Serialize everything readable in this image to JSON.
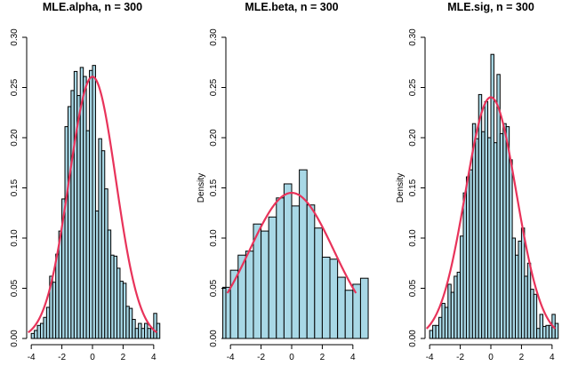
{
  "chart_data": [
    {
      "type": "bar",
      "title": "MLE.alpha, n = 300",
      "xlabel": "",
      "ylabel": "",
      "xlim": [
        -4.3,
        4.3
      ],
      "ylim": [
        0,
        0.3
      ],
      "xticks": [
        -4,
        -2,
        0,
        2,
        4
      ],
      "yticks": [
        0.0,
        0.05,
        0.1,
        0.15,
        0.2,
        0.25,
        0.3
      ],
      "bin_start": -4.0,
      "bin_width": 0.2,
      "values": [
        0.005,
        0.008,
        0.013,
        0.015,
        0.021,
        0.031,
        0.062,
        0.056,
        0.084,
        0.107,
        0.139,
        0.211,
        0.231,
        0.247,
        0.266,
        0.242,
        0.27,
        0.261,
        0.207,
        0.267,
        0.272,
        0.127,
        0.199,
        0.187,
        0.149,
        0.108,
        0.083,
        0.082,
        0.07,
        0.057,
        0.055,
        0.032,
        0.03,
        0.019,
        0.01,
        0.015,
        0.01,
        0.015,
        0.01,
        0.01,
        0.025,
        0.015
      ],
      "curve": {
        "name": "",
        "mean": 0.0,
        "sd": 1.53
      },
      "bar_color": "#a8d8e6",
      "curve_color": "#e8335a",
      "grid": false
    },
    {
      "type": "bar",
      "title": "MLE.beta, n = 300",
      "xlabel": "",
      "ylabel": "Density",
      "xlim": [
        -4.3,
        4.3
      ],
      "ylim": [
        0,
        0.3
      ],
      "xticks": [
        -4,
        -2,
        0,
        2,
        4
      ],
      "yticks": [
        0.0,
        0.05,
        0.1,
        0.15,
        0.2,
        0.25,
        0.3
      ],
      "bin_start": -4.5,
      "bin_width": 0.5,
      "values": [
        0.051,
        0.068,
        0.083,
        0.087,
        0.114,
        0.107,
        0.121,
        0.14,
        0.154,
        0.132,
        0.168,
        0.133,
        0.11,
        0.081,
        0.079,
        0.061,
        0.048,
        0.054,
        0.06
      ],
      "curve": {
        "name": "",
        "mean": 0.0,
        "sd": 2.75
      },
      "bar_color": "#a8d8e6",
      "curve_color": "#e8335a",
      "grid": false
    },
    {
      "type": "bar",
      "title": "MLE.sig, n = 300",
      "xlabel": "",
      "ylabel": "Density",
      "xlim": [
        -4.3,
        4.3
      ],
      "ylim": [
        0,
        0.3
      ],
      "xticks": [
        -4,
        -2,
        0,
        2,
        4
      ],
      "yticks": [
        0.0,
        0.05,
        0.1,
        0.15,
        0.2,
        0.25,
        0.3
      ],
      "bin_start": -4.0,
      "bin_width": 0.2,
      "values": [
        0.008,
        0.013,
        0.013,
        0.021,
        0.035,
        0.031,
        0.054,
        0.046,
        0.062,
        0.066,
        0.102,
        0.145,
        0.161,
        0.168,
        0.214,
        0.199,
        0.243,
        0.206,
        0.236,
        0.2,
        0.283,
        0.195,
        0.263,
        0.204,
        0.214,
        0.211,
        0.178,
        0.1,
        0.083,
        0.097,
        0.11,
        0.062,
        0.075,
        0.049,
        0.044,
        0.01,
        0.024,
        0.012,
        0.013,
        0.013,
        0.024,
        0.015
      ],
      "curve": {
        "name": "",
        "mean": 0.0,
        "sd": 1.66
      },
      "bar_color": "#a8d8e6",
      "curve_color": "#e8335a",
      "grid": false
    }
  ]
}
